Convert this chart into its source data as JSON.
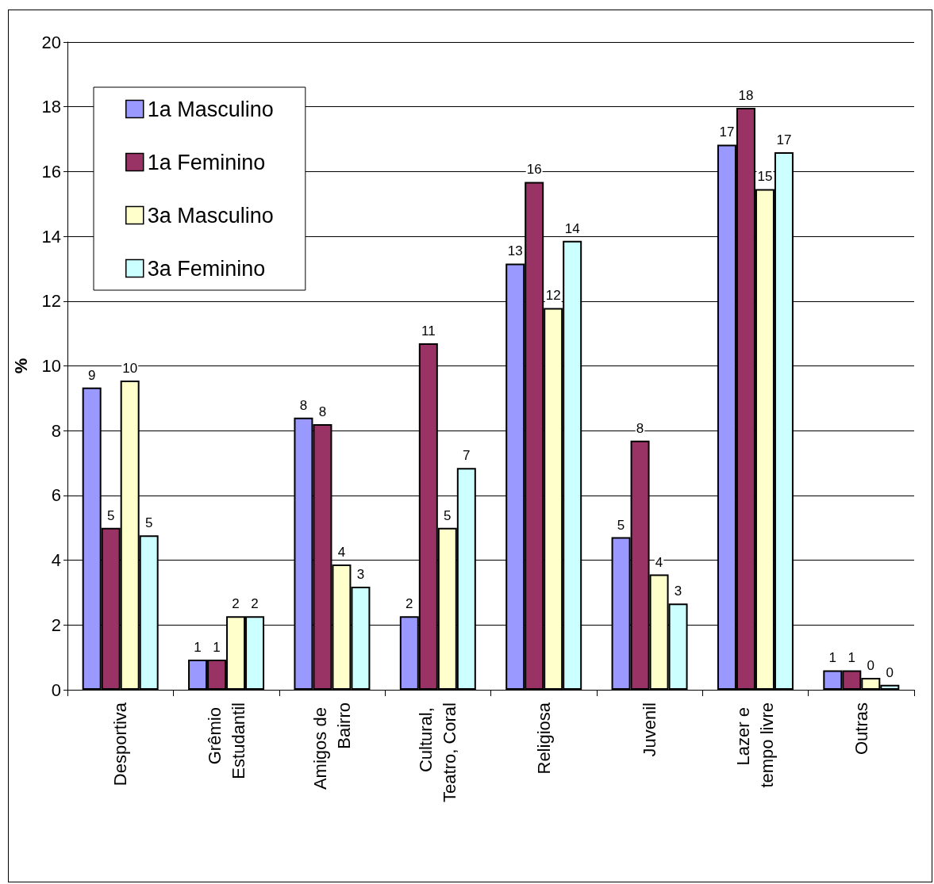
{
  "chart_data": {
    "type": "bar",
    "ylabel": "%",
    "categories": [
      "Desportiva",
      "Grêmio Estudantil",
      "Amigos de Bairro",
      "Cultural, Teatro, Coral",
      "Religiosa",
      "Juvenil",
      "Lazer e tempo livre",
      "Outras"
    ],
    "series": [
      {
        "name": "1a Masculino",
        "color": "#9999ff",
        "values": [
          9.33,
          0.93,
          8.4,
          2.27,
          13.16,
          4.71,
          16.83,
          0.6
        ],
        "value_labels": [
          "9",
          "1",
          "8",
          "2",
          "13",
          "5",
          "17",
          "1"
        ]
      },
      {
        "name": "1a Feminino",
        "color": "#993366",
        "values": [
          5.0,
          0.93,
          8.2,
          10.7,
          15.68,
          7.69,
          17.97,
          0.6
        ],
        "value_labels": [
          "5",
          "1",
          "8",
          "11",
          "16",
          "8",
          "18",
          "1"
        ]
      },
      {
        "name": "3a Masculino",
        "color": "#ffffcc",
        "values": [
          9.55,
          2.27,
          3.87,
          5.0,
          11.79,
          3.56,
          15.46,
          0.37
        ],
        "value_labels": [
          "10",
          "2",
          "4",
          "5",
          "12",
          "4",
          "15",
          "0"
        ]
      },
      {
        "name": "3a Feminino",
        "color": "#ccffff",
        "values": [
          4.77,
          2.27,
          3.18,
          6.85,
          13.86,
          2.66,
          16.6,
          0.15
        ],
        "value_labels": [
          "5",
          "2",
          "3",
          "7",
          "14",
          "3",
          "17",
          "0"
        ]
      }
    ],
    "ylim": [
      0,
      20
    ],
    "yticks": [
      0,
      2,
      4,
      6,
      8,
      10,
      12,
      14,
      16,
      18,
      20
    ],
    "grid": "y",
    "legend": "top left"
  }
}
